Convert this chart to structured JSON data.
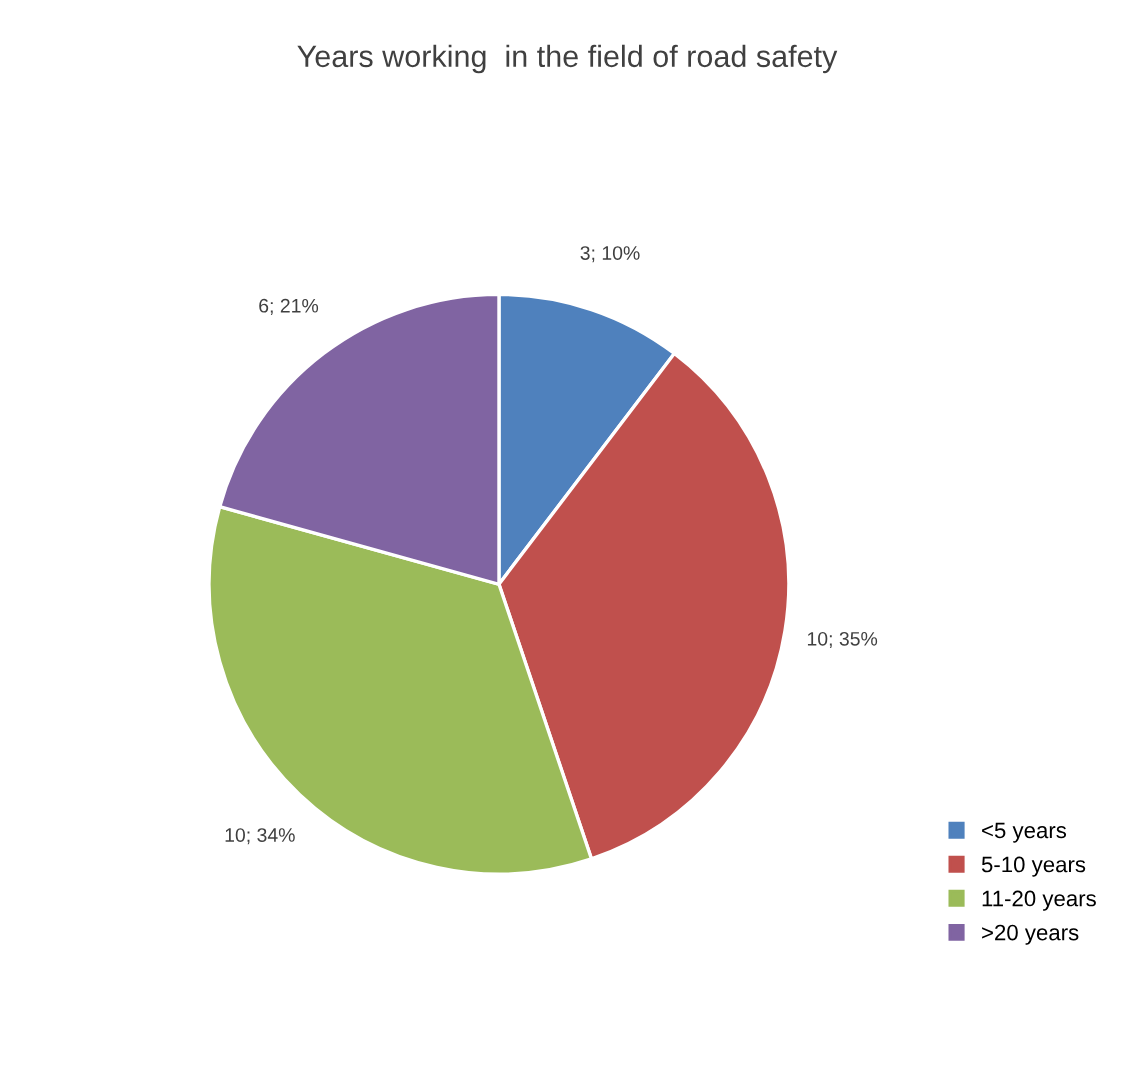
{
  "chart_data": {
    "type": "pie",
    "title": "Years working  in the field of road safety",
    "categories": [
      "<5 years",
      "5-10 years",
      "11-20 years",
      ">20 years"
    ],
    "values": [
      3,
      10,
      10,
      6
    ],
    "value_labels": [
      "3; 10%",
      "10; 35%",
      "10; 34%",
      "6; 21%"
    ],
    "colors": [
      "#4f81bd",
      "#c0504d",
      "#9bbb59",
      "#8064a2"
    ],
    "legend": "bottom right"
  }
}
